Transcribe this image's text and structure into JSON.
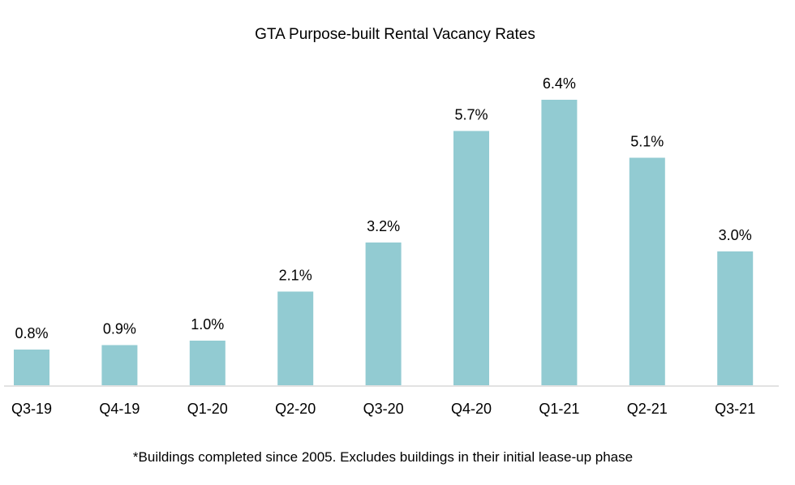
{
  "chart_data": {
    "type": "bar",
    "title": "GTA Purpose-built Rental Vacancy Rates",
    "categories": [
      "Q3-19",
      "Q4-19",
      "Q1-20",
      "Q2-20",
      "Q3-20",
      "Q4-20",
      "Q1-21",
      "Q2-21",
      "Q3-21"
    ],
    "values": [
      0.8,
      0.9,
      1.0,
      2.1,
      3.2,
      5.7,
      6.4,
      5.1,
      3.0
    ],
    "data_labels": [
      "0.8%",
      "0.9%",
      "1.0%",
      "2.1%",
      "3.2%",
      "5.7%",
      "6.4%",
      "5.1%",
      "3.0%"
    ],
    "footnote": "*Buildings completed since 2005. Excludes buildings in their initial lease-up phase",
    "xlabel": "",
    "ylabel": "",
    "ylim": [
      0,
      6.4
    ],
    "grid": false,
    "legend": "none",
    "bar_color": "#92CBD2",
    "axis_color": "#D9D9D9"
  }
}
